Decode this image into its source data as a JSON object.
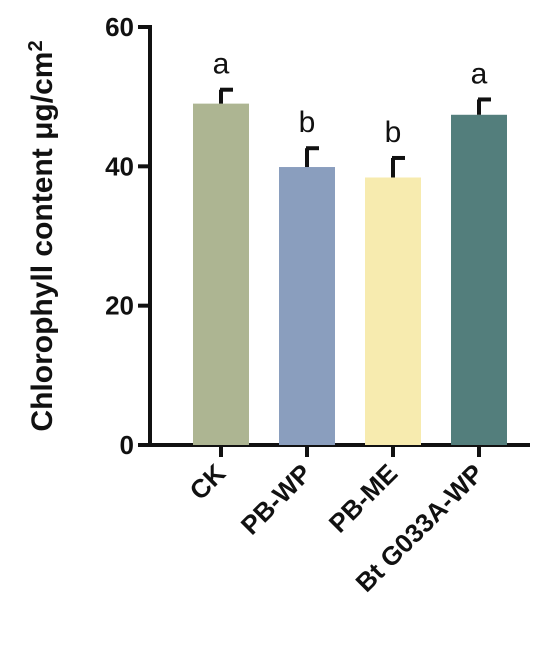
{
  "chart_data": {
    "type": "bar",
    "ylabel": "Chlorophyll content μg/cm",
    "ylabel_superscript": "2",
    "ylim": [
      0,
      60
    ],
    "yticks": [
      "0",
      "20",
      "40",
      "60"
    ],
    "categories": [
      "CK",
      "PB-WP",
      "PB-ME",
      "Bt G033A-WP"
    ],
    "values": [
      49.0,
      39.9,
      38.4,
      47.4
    ],
    "errors": [
      2.0,
      2.7,
      2.8,
      2.2
    ],
    "significance": [
      "a",
      "b",
      "b",
      "a"
    ],
    "colors": [
      "#adb592",
      "#8a9ebe",
      "#f7ebaf",
      "#537e7c"
    ],
    "grid": false,
    "legend": "none"
  }
}
